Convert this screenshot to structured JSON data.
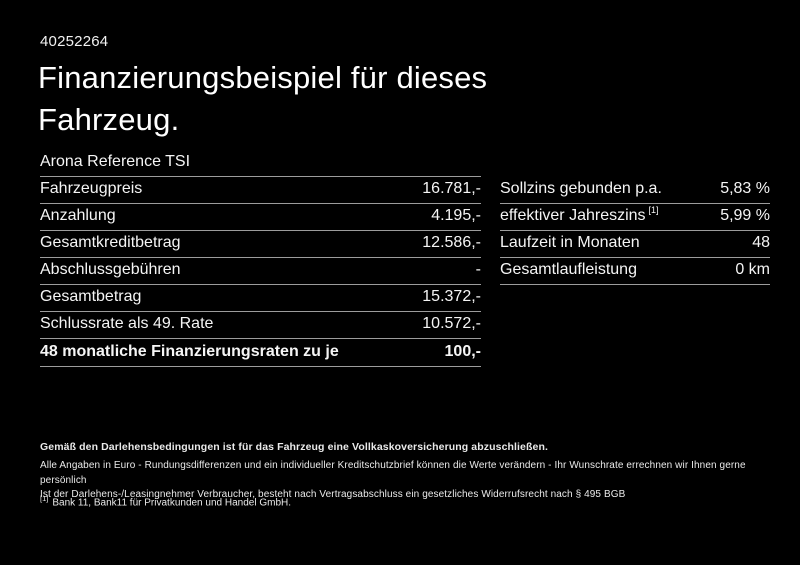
{
  "page": {
    "ref_number": "40252264",
    "title": "Finanzierungsbeispiel für dieses Fahrzeug.",
    "model_name": "Arona Reference TSI"
  },
  "finance_table": {
    "rows": [
      {
        "label": "Fahrzeugpreis",
        "value": "16.781,-"
      },
      {
        "label": "Anzahlung",
        "value": "4.195,-"
      },
      {
        "label": "Gesamtkreditbetrag",
        "value": "12.586,-"
      },
      {
        "label": "Abschlussgebühren",
        "value": "-"
      },
      {
        "label": "Gesamtbetrag",
        "value": "15.372,-"
      },
      {
        "label": "Schlussrate als 49. Rate",
        "value": "10.572,-"
      },
      {
        "label": "48 monatliche Finanzierungsraten zu je",
        "value": "100,-"
      }
    ]
  },
  "rates_table": {
    "rows": [
      {
        "label": "Sollzins gebunden p.a.",
        "sup": "",
        "value": "5,83 %"
      },
      {
        "label": "effektiver Jahreszins",
        "sup": "[1]",
        "value": "5,99 %"
      },
      {
        "label": "Laufzeit in Monaten",
        "sup": "",
        "value": "48"
      },
      {
        "label": "Gesamtlaufleistung",
        "sup": "",
        "value": "0 km"
      }
    ]
  },
  "disclaimer": {
    "line1": "Gemäß den Darlehensbedingungen ist für das Fahrzeug eine Vollkaskoversicherung abzuschließen.",
    "line2": "Alle Angaben in Euro - Rundungsdifferenzen und ein individueller Kreditschutzbrief können die Werte verändern - Ihr Wunschrate errechnen wir Ihnen gerne persönlich",
    "line3": "Ist der Darlehens-/Leasingnehmer Verbraucher, besteht nach Vertragsabschluss ein gesetzliches Widerrufsrecht nach § 495 BGB",
    "footnote_marker": "[1]",
    "footnote_text": "Bank 11, Bank11 für Privatkunden und Handel GmbH."
  },
  "colors": {
    "background": "#000000",
    "text": "#f5f5f5",
    "border": "#9c9c9c"
  }
}
